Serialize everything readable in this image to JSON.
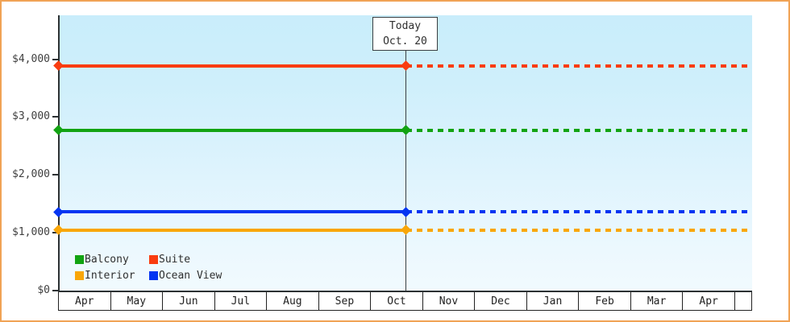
{
  "page": {
    "frame_border_color": "#f0a355",
    "axis_color": "#2c3133",
    "today_marker_color": "#3a3f41"
  },
  "chart_data": {
    "type": "line",
    "title": "",
    "xlabel": "",
    "ylabel": "",
    "x_months": [
      "Apr",
      "May",
      "Jun",
      "Jul",
      "Aug",
      "Sep",
      "Oct",
      "Nov",
      "Dec",
      "Jan",
      "Feb",
      "Mar",
      "Apr"
    ],
    "y_ticks": [
      {
        "label": "$4,000",
        "value": 4000
      },
      {
        "label": "$3,000",
        "value": 3000
      },
      {
        "label": "$2,000",
        "value": 2000
      },
      {
        "label": "$1,000",
        "value": 1000
      },
      {
        "label": "$0",
        "value": 0
      }
    ],
    "ylim": [
      0,
      4760
    ],
    "grid": false,
    "legend_position": "bottom-left-inside",
    "today": {
      "label_line1": "Today",
      "label_line2": "Oct. 20",
      "x_fraction": 0.5
    },
    "series": [
      {
        "name": "Balcony",
        "color": "#12a312",
        "value": 2770,
        "style": "solid-then-dashed-after-today"
      },
      {
        "name": "Suite",
        "color": "#f93c10",
        "value": 3890,
        "style": "solid-then-dashed-after-today"
      },
      {
        "name": "Interior",
        "color": "#f9a608",
        "value": 1050,
        "style": "solid-then-dashed-after-today"
      },
      {
        "name": "Ocean View",
        "color": "#0535f2",
        "value": 1360,
        "style": "solid-then-dashed-after-today"
      }
    ]
  }
}
